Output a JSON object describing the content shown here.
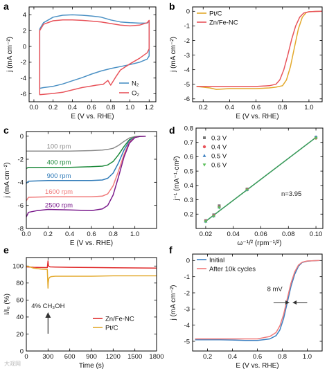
{
  "chart_data": [
    {
      "panel": "a",
      "type": "line",
      "xlabel": "E (V vs. RHE)",
      "ylabel": "j (mA cm⁻²)",
      "xlim": [
        -0.05,
        1.27
      ],
      "ylim": [
        -7,
        5
      ],
      "xticks": [
        0.0,
        0.2,
        0.4,
        0.6,
        0.8,
        1.0,
        1.2
      ],
      "yticks": [
        -6,
        -4,
        -2,
        0,
        2,
        4
      ],
      "legend_position": "bottom-right",
      "series": [
        {
          "name": "N₂",
          "color": "#4a90c4",
          "closed": true,
          "x": [
            0.06,
            0.1,
            0.2,
            0.3,
            0.4,
            0.5,
            0.6,
            0.7,
            0.8,
            0.9,
            1.0,
            1.1,
            1.18,
            1.2,
            1.2,
            1.18,
            1.1,
            1.0,
            0.9,
            0.8,
            0.7,
            0.6,
            0.5,
            0.4,
            0.3,
            0.2,
            0.1,
            0.06,
            0.06
          ],
          "y": [
            2.2,
            3.0,
            3.7,
            3.95,
            4.0,
            3.95,
            3.85,
            3.7,
            3.35,
            3.1,
            3.0,
            2.95,
            2.95,
            3.2,
            -1.2,
            -1.6,
            -2.0,
            -2.3,
            -2.55,
            -2.8,
            -3.1,
            -3.5,
            -3.95,
            -4.35,
            -4.75,
            -5.05,
            -5.2,
            -5.3,
            2.2
          ]
        },
        {
          "name": "O₂",
          "color": "#e8545b",
          "closed": true,
          "x": [
            0.06,
            0.1,
            0.2,
            0.3,
            0.4,
            0.5,
            0.6,
            0.7,
            0.8,
            0.9,
            1.0,
            1.1,
            1.18,
            1.2,
            1.2,
            1.18,
            1.1,
            1.0,
            0.9,
            0.85,
            0.8,
            0.77,
            0.72,
            0.65,
            0.6,
            0.5,
            0.4,
            0.3,
            0.2,
            0.1,
            0.06,
            0.06
          ],
          "y": [
            2.0,
            2.8,
            3.25,
            3.35,
            3.35,
            3.3,
            3.2,
            3.1,
            2.9,
            2.7,
            2.6,
            2.7,
            3.0,
            3.3,
            -0.3,
            -0.8,
            -1.5,
            -2.2,
            -3.0,
            -3.9,
            -4.9,
            -4.3,
            -4.8,
            -4.9,
            -5.0,
            -5.2,
            -5.5,
            -5.8,
            -5.95,
            -6.05,
            -6.1,
            2.0
          ]
        }
      ]
    },
    {
      "panel": "b",
      "type": "line",
      "xlabel": "E (V vs. RHE)",
      "ylabel": "j (mA cm⁻²)",
      "xlim": [
        0.12,
        1.1
      ],
      "ylim": [
        -6.2,
        0.3
      ],
      "xticks": [
        0.2,
        0.4,
        0.6,
        0.8,
        1.0
      ],
      "yticks": [
        -6,
        -5,
        -4,
        -3,
        -2,
        -1,
        0
      ],
      "legend_position": "top-left",
      "series": [
        {
          "name": "Pt/C",
          "color": "#e3a92b",
          "x": [
            0.15,
            0.2,
            0.25,
            0.3,
            0.4,
            0.5,
            0.6,
            0.7,
            0.75,
            0.8,
            0.83,
            0.86,
            0.89,
            0.92,
            0.95,
            0.98,
            1.0,
            1.05,
            1.1
          ],
          "y": [
            -5.15,
            -5.2,
            -5.25,
            -5.35,
            -5.3,
            -5.3,
            -5.3,
            -5.25,
            -5.2,
            -5.1,
            -4.7,
            -3.8,
            -2.5,
            -1.2,
            -0.4,
            -0.08,
            -0.03,
            -0.01,
            0
          ]
        },
        {
          "name": "Zn/Fe-NC",
          "color": "#e8545b",
          "x": [
            0.15,
            0.2,
            0.3,
            0.4,
            0.5,
            0.6,
            0.7,
            0.75,
            0.78,
            0.81,
            0.84,
            0.87,
            0.9,
            0.93,
            0.96,
            1.0,
            1.05,
            1.1
          ],
          "y": [
            -5.15,
            -5.15,
            -5.15,
            -5.15,
            -5.15,
            -5.15,
            -5.1,
            -5.0,
            -4.7,
            -4.0,
            -3.0,
            -1.9,
            -1.0,
            -0.4,
            -0.12,
            -0.03,
            -0.01,
            0
          ]
        }
      ]
    },
    {
      "panel": "c",
      "type": "line",
      "xlabel": "E (V vs. RHE)",
      "ylabel": "j (mA cm⁻²)",
      "xlim": [
        0.0,
        1.2
      ],
      "ylim": [
        -8,
        0.4
      ],
      "xticks": [
        0.0,
        0.2,
        0.4,
        0.6,
        0.8,
        1.0
      ],
      "yticks": [
        -8,
        -6,
        -4,
        -2,
        0
      ],
      "series": [
        {
          "name": "100 rpm",
          "color": "#8c8c8c",
          "x": [
            0.0,
            0.02,
            0.2,
            0.4,
            0.6,
            0.7,
            0.75,
            0.8,
            0.85,
            0.9,
            0.95,
            1.0,
            1.05,
            1.1
          ],
          "y": [
            -1.3,
            -1.3,
            -1.3,
            -1.3,
            -1.25,
            -1.2,
            -1.15,
            -1.05,
            -0.8,
            -0.45,
            -0.15,
            -0.04,
            -0.01,
            0
          ]
        },
        {
          "name": "400 rpm",
          "color": "#1e8a3c",
          "x": [
            0.0,
            0.02,
            0.2,
            0.4,
            0.6,
            0.7,
            0.75,
            0.8,
            0.85,
            0.9,
            0.95,
            1.0,
            1.05,
            1.1
          ],
          "y": [
            -2.8,
            -2.7,
            -2.7,
            -2.7,
            -2.65,
            -2.6,
            -2.5,
            -2.2,
            -1.6,
            -0.9,
            -0.3,
            -0.07,
            -0.01,
            0
          ]
        },
        {
          "name": "900 rpm",
          "color": "#2f7ab8",
          "x": [
            0.0,
            0.02,
            0.2,
            0.4,
            0.6,
            0.7,
            0.75,
            0.8,
            0.85,
            0.9,
            0.95,
            1.0,
            1.05,
            1.1
          ],
          "y": [
            -4.1,
            -3.9,
            -3.85,
            -3.85,
            -3.85,
            -3.8,
            -3.65,
            -3.2,
            -2.3,
            -1.2,
            -0.4,
            -0.09,
            -0.02,
            0
          ]
        },
        {
          "name": "1600 rpm",
          "color": "#f07a7a",
          "x": [
            0.0,
            0.02,
            0.2,
            0.4,
            0.6,
            0.7,
            0.75,
            0.8,
            0.85,
            0.9,
            0.95,
            1.0,
            1.05,
            1.1
          ],
          "y": [
            -5.6,
            -5.3,
            -5.25,
            -5.25,
            -5.25,
            -5.2,
            -5.0,
            -4.3,
            -3.0,
            -1.6,
            -0.5,
            -0.1,
            -0.02,
            0
          ]
        },
        {
          "name": "2500 rpm",
          "color": "#7a1b8c",
          "x": [
            0.0,
            0.02,
            0.1,
            0.2,
            0.4,
            0.6,
            0.7,
            0.75,
            0.8,
            0.85,
            0.9,
            0.95,
            1.0,
            1.05,
            1.1
          ],
          "y": [
            -7.0,
            -6.6,
            -6.45,
            -6.35,
            -6.4,
            -6.45,
            -6.3,
            -6.0,
            -5.1,
            -3.5,
            -1.8,
            -0.6,
            -0.12,
            -0.02,
            0
          ]
        }
      ]
    },
    {
      "panel": "d",
      "type": "scatter",
      "xlabel": "ω⁻¹/² (rpm⁻¹/²)",
      "ylabel": "j⁻¹ (mA⁻¹·cm²)",
      "xlim": [
        0.013,
        0.105
      ],
      "ylim": [
        0.1,
        0.8
      ],
      "xticks": [
        0.02,
        0.04,
        0.06,
        0.08,
        0.1
      ],
      "yticks": [
        0.2,
        0.3,
        0.4,
        0.5,
        0.6,
        0.7,
        0.8
      ],
      "legend_position": "top-left",
      "annotation": "n=3.95",
      "fit_line": {
        "x": [
          0.02,
          0.1
        ],
        "y": [
          0.15,
          0.735
        ],
        "color": "#3a9a5b"
      },
      "series": [
        {
          "name": "0.3 V",
          "color": "#777777",
          "x": [
            0.02,
            0.0258,
            0.0298,
            0.05,
            0.1
          ],
          "y": [
            0.155,
            0.195,
            0.258,
            0.375,
            0.735
          ]
        },
        {
          "name": "0.4 V",
          "color": "#e8545b",
          "x": [
            0.02,
            0.0258,
            0.0298,
            0.05,
            0.1
          ],
          "y": [
            0.152,
            0.19,
            0.25,
            0.372,
            0.73
          ]
        },
        {
          "name": "0.5 V",
          "color": "#3a7fc1",
          "x": [
            0.02,
            0.0258,
            0.0298,
            0.05,
            0.1
          ],
          "y": [
            0.15,
            0.188,
            0.248,
            0.37,
            0.738
          ]
        },
        {
          "name": "0.6 V",
          "color": "#5bbf5b",
          "x": [
            0.02,
            0.0258,
            0.0298,
            0.05,
            0.1
          ],
          "y": [
            0.148,
            0.185,
            0.245,
            0.368,
            0.73
          ]
        }
      ]
    },
    {
      "panel": "e",
      "type": "line",
      "xlabel": "Time (s)",
      "ylabel": "I/I₀ (%)",
      "xlim": [
        0,
        1800
      ],
      "ylim": [
        0,
        110
      ],
      "xticks": [
        0,
        300,
        600,
        900,
        1200,
        1500,
        1800
      ],
      "yticks": [
        0,
        20,
        40,
        60,
        80,
        100
      ],
      "legend_position": "bottom-right",
      "annotation": "4% CH₃OH",
      "series": [
        {
          "name": "Zn/Fe-NC",
          "color": "#e02b2b",
          "x": [
            0,
            50,
            100,
            200,
            290,
            300,
            305,
            315,
            330,
            400,
            600,
            900,
            1200,
            1500,
            1800
          ],
          "y": [
            99,
            98.8,
            98.5,
            98.3,
            98.2,
            106,
            100.5,
            99.5,
            99,
            98.8,
            98.5,
            98.3,
            98,
            97.8,
            97.6
          ]
        },
        {
          "name": "Pt/C",
          "color": "#e3a92b",
          "x": [
            0,
            50,
            100,
            200,
            290,
            300,
            303,
            310,
            320,
            340,
            400,
            600,
            900,
            1200,
            1500,
            1800
          ],
          "y": [
            100,
            99,
            97.5,
            96.5,
            96,
            74,
            80,
            85,
            86.5,
            87.5,
            88,
            88,
            88,
            88.5,
            88.5,
            88.5
          ]
        }
      ]
    },
    {
      "panel": "f",
      "type": "line",
      "xlabel": "E (V vs. RHE)",
      "ylabel": "j (mA cm⁻²)",
      "xlim": [
        0.08,
        1.12
      ],
      "ylim": [
        -5.6,
        0.4
      ],
      "xticks": [
        0.2,
        0.4,
        0.6,
        0.8,
        1.0
      ],
      "yticks": [
        -5,
        -4,
        -3,
        -2,
        -1,
        0
      ],
      "legend_position": "top-left",
      "annotation": "8 mV",
      "series": [
        {
          "name": "Initial",
          "color": "#3a7fc1",
          "x": [
            0.1,
            0.2,
            0.3,
            0.4,
            0.5,
            0.6,
            0.7,
            0.75,
            0.78,
            0.81,
            0.84,
            0.87,
            0.9,
            0.93,
            0.96,
            1.0,
            1.05,
            1.1
          ],
          "y": [
            -4.9,
            -4.9,
            -4.9,
            -4.92,
            -4.95,
            -4.95,
            -4.85,
            -4.65,
            -4.3,
            -3.6,
            -2.6,
            -1.6,
            -0.85,
            -0.35,
            -0.12,
            -0.04,
            -0.01,
            0
          ]
        },
        {
          "name": "After 10k cycles",
          "color": "#f07a7a",
          "x": [
            0.1,
            0.2,
            0.3,
            0.4,
            0.5,
            0.6,
            0.7,
            0.75,
            0.78,
            0.81,
            0.84,
            0.87,
            0.9,
            0.93,
            0.96,
            1.0,
            1.05,
            1.1
          ],
          "y": [
            -4.85,
            -4.85,
            -4.85,
            -4.85,
            -4.85,
            -4.85,
            -4.7,
            -4.45,
            -4.05,
            -3.35,
            -2.35,
            -1.4,
            -0.7,
            -0.28,
            -0.1,
            -0.03,
            -0.01,
            0
          ]
        }
      ]
    }
  ],
  "ui": {
    "panel_labels": [
      "a",
      "b",
      "c",
      "d",
      "e",
      "f"
    ],
    "rpm_labels": [
      "100 rpm",
      "400 rpm",
      "900 rpm",
      "1600 rpm",
      "2500 rpm"
    ],
    "watermark": "大观网"
  }
}
